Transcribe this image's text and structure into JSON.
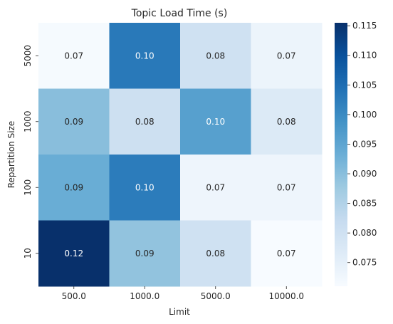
{
  "chart_data": {
    "type": "heatmap",
    "title": "Topic Load Time (s)",
    "xlabel": "Limit",
    "ylabel": "Repartition Size",
    "x_categories": [
      "500.0",
      "1000.0",
      "5000.0",
      "10000.0"
    ],
    "y_categories": [
      "5000",
      "1000",
      "100",
      "10"
    ],
    "values": [
      [
        0.0715,
        0.103,
        0.08,
        0.0735
      ],
      [
        0.09,
        0.0805,
        0.096,
        0.077
      ],
      [
        0.0935,
        0.1025,
        0.073,
        0.073
      ],
      [
        0.1155,
        0.089,
        0.08,
        0.071
      ]
    ],
    "cell_labels": [
      [
        "0.07",
        "0.10",
        "0.08",
        "0.07"
      ],
      [
        "0.09",
        "0.08",
        "0.10",
        "0.08"
      ],
      [
        "0.09",
        "0.10",
        "0.07",
        "0.07"
      ],
      [
        "0.12",
        "0.09",
        "0.08",
        "0.07"
      ]
    ],
    "colorbar": {
      "min": 0.071,
      "max": 0.1155,
      "ticks": [
        "0.075",
        "0.080",
        "0.085",
        "0.090",
        "0.095",
        "0.100",
        "0.105",
        "0.110",
        "0.115"
      ],
      "colormap": "Blues"
    }
  }
}
